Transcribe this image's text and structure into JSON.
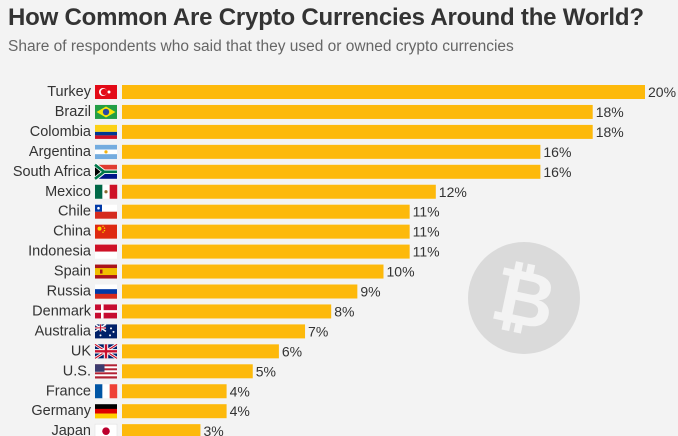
{
  "title": "How Common Are Crypto Currencies Around the World?",
  "subtitle": "Share of respondents who said that they used or owned crypto currencies",
  "accent_color": "#fdb90b",
  "watermark_icon": "bitcoin-icon",
  "chart_data": {
    "type": "bar",
    "orientation": "horizontal",
    "title": "How Common Are Crypto Currencies Around the World?",
    "subtitle": "Share of respondents who said that they used or owned crypto currencies",
    "categories": [
      "Turkey",
      "Brazil",
      "Colombia",
      "Argentina",
      "South Africa",
      "Mexico",
      "Chile",
      "China",
      "Indonesia",
      "Spain",
      "Russia",
      "Denmark",
      "Australia",
      "UK",
      "U.S.",
      "France",
      "Germany",
      "Japan"
    ],
    "flags": [
      "flag-turkey-icon",
      "flag-brazil-icon",
      "flag-colombia-icon",
      "flag-argentina-icon",
      "flag-south-africa-icon",
      "flag-mexico-icon",
      "flag-chile-icon",
      "flag-china-icon",
      "flag-indonesia-icon",
      "flag-spain-icon",
      "flag-russia-icon",
      "flag-denmark-icon",
      "flag-australia-icon",
      "flag-uk-icon",
      "flag-us-icon",
      "flag-france-icon",
      "flag-germany-icon",
      "flag-japan-icon"
    ],
    "values": [
      20,
      18,
      18,
      16,
      16,
      12,
      11,
      11,
      11,
      10,
      9,
      8,
      7,
      6,
      5,
      4,
      4,
      3
    ],
    "labels": [
      "20%",
      "18%",
      "18%",
      "16%",
      "16%",
      "12%",
      "11%",
      "11%",
      "11%",
      "10%",
      "9%",
      "8%",
      "7%",
      "6%",
      "5%",
      "4%",
      "4%",
      "3%"
    ],
    "unit": "%",
    "xlim": [
      0,
      20
    ],
    "grid": false,
    "legend": "none",
    "bar_color": "#fdb90b"
  }
}
